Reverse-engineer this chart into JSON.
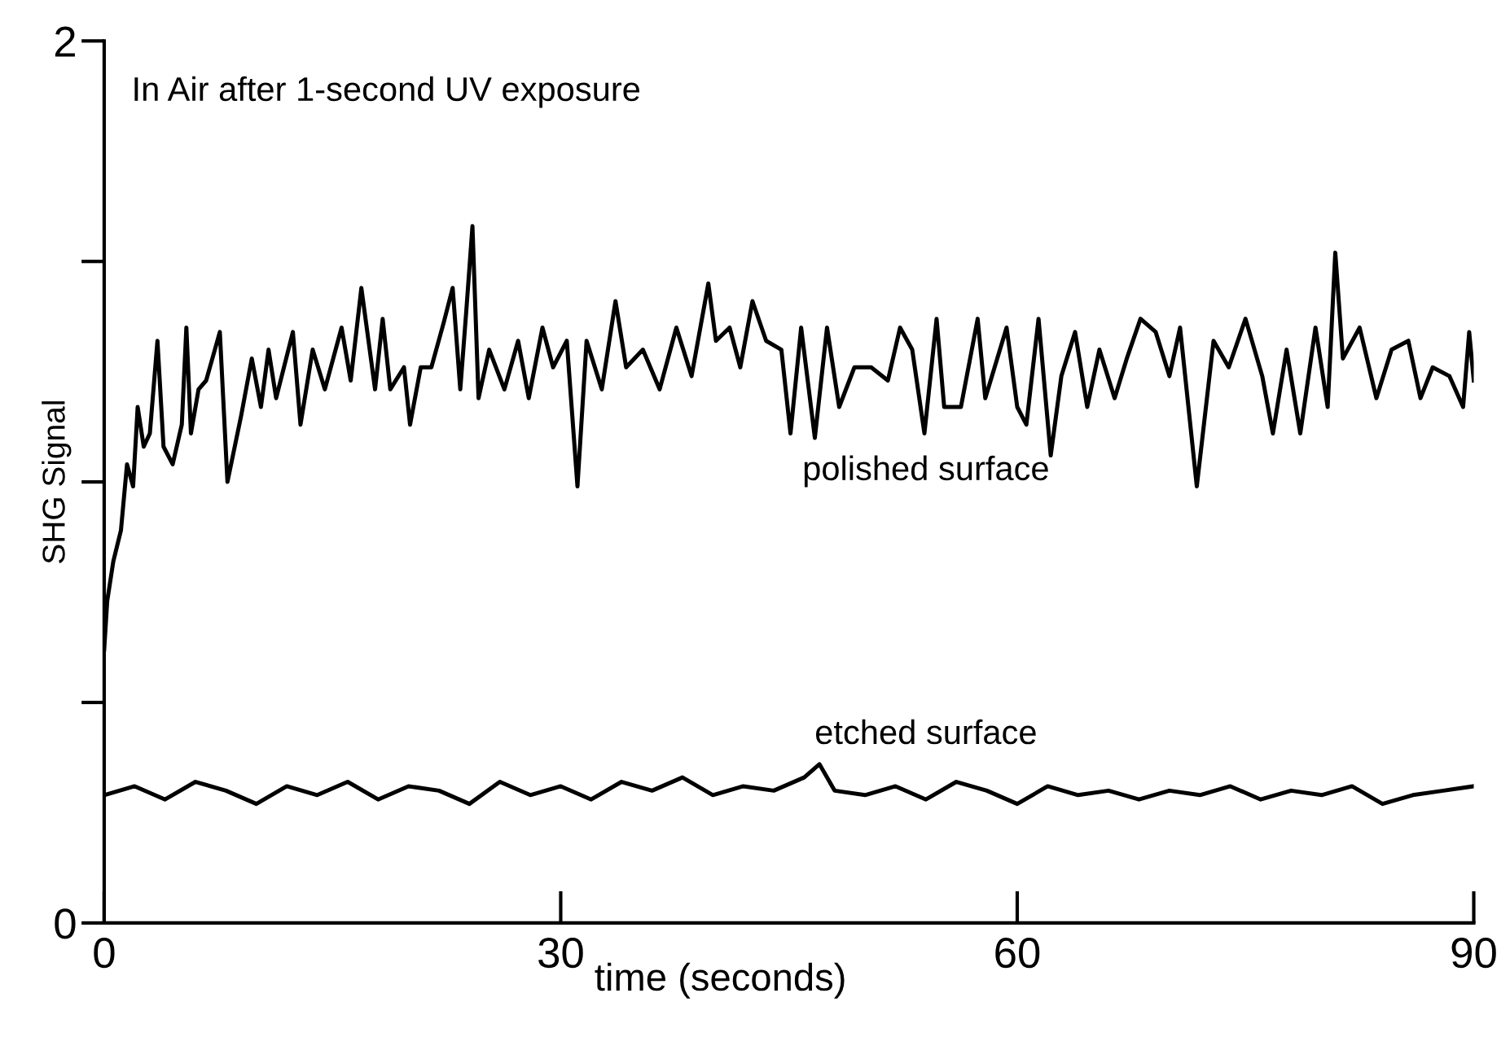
{
  "chart_data": {
    "type": "line",
    "xlabel": "time (seconds)",
    "ylabel": "SHG Signal",
    "annotations": [
      "In Air after 1-second UV exposure"
    ],
    "xlim": [
      0,
      90
    ],
    "xticks": [
      0,
      30,
      60,
      90
    ],
    "ylim": [
      0,
      2
    ],
    "yticks": [
      0,
      {
        "value": 0.5,
        "label": null
      },
      {
        "value": 1,
        "label": null
      },
      {
        "value": 1.5,
        "label": null
      },
      2
    ],
    "grid": false,
    "legend": false,
    "marker": "none",
    "line_style": "solid",
    "series": [
      {
        "name": "polished surface",
        "color": "#000000",
        "x": [
          0,
          0.2,
          0.6,
          1.1,
          1.5,
          1.9,
          2.2,
          2.6,
          3.0,
          3.5,
          3.9,
          4.5,
          5.1,
          5.4,
          5.7,
          6.2,
          6.7,
          7.6,
          8.1,
          9.0,
          9.7,
          10.3,
          10.8,
          11.3,
          12.4,
          12.9,
          13.7,
          14.5,
          15.6,
          16.2,
          16.9,
          17.8,
          18.3,
          18.8,
          19.7,
          20.1,
          20.8,
          21.5,
          22.3,
          22.9,
          23.4,
          23.8,
          24.2,
          24.6,
          25.3,
          26.3,
          27.2,
          27.9,
          28.8,
          29.5,
          30.4,
          31.1,
          31.7,
          32.7,
          33.6,
          34.3,
          35.4,
          36.5,
          37.6,
          38.6,
          39.7,
          40.2,
          41.1,
          41.8,
          42.6,
          43.5,
          44.5,
          45.1,
          45.8,
          46.7,
          47.5,
          48.3,
          49.3,
          50.4,
          51.5,
          52.3,
          53.1,
          53.9,
          54.7,
          55.2,
          56.3,
          57.4,
          57.9,
          59.3,
          60.0,
          60.6,
          61.4,
          62.2,
          62.9,
          63.8,
          64.6,
          65.4,
          66.4,
          67.2,
          68.1,
          69.1,
          70.0,
          70.7,
          71.8,
          72.9,
          73.9,
          75.0,
          76.1,
          76.8,
          77.7,
          78.6,
          79.6,
          80.4,
          80.9,
          81.4,
          82.5,
          83.6,
          84.6,
          85.7,
          86.5,
          87.3,
          88.4,
          89.3,
          89.7,
          90.0
        ],
        "values": [
          0.62,
          0.73,
          0.82,
          0.89,
          1.04,
          0.99,
          1.17,
          1.08,
          1.11,
          1.32,
          1.08,
          1.04,
          1.13,
          1.35,
          1.11,
          1.21,
          1.23,
          1.34,
          1.0,
          1.15,
          1.28,
          1.17,
          1.3,
          1.19,
          1.34,
          1.13,
          1.3,
          1.21,
          1.35,
          1.23,
          1.44,
          1.21,
          1.37,
          1.21,
          1.26,
          1.13,
          1.26,
          1.26,
          1.36,
          1.44,
          1.21,
          1.39,
          1.58,
          1.19,
          1.3,
          1.21,
          1.32,
          1.19,
          1.35,
          1.26,
          1.32,
          0.99,
          1.32,
          1.21,
          1.41,
          1.26,
          1.3,
          1.21,
          1.35,
          1.24,
          1.45,
          1.32,
          1.35,
          1.26,
          1.41,
          1.32,
          1.3,
          1.11,
          1.35,
          1.1,
          1.35,
          1.17,
          1.26,
          1.26,
          1.23,
          1.35,
          1.3,
          1.11,
          1.37,
          1.17,
          1.17,
          1.37,
          1.19,
          1.35,
          1.17,
          1.13,
          1.37,
          1.06,
          1.24,
          1.34,
          1.17,
          1.3,
          1.19,
          1.28,
          1.37,
          1.34,
          1.24,
          1.35,
          0.99,
          1.32,
          1.26,
          1.37,
          1.24,
          1.11,
          1.3,
          1.11,
          1.35,
          1.17,
          1.52,
          1.28,
          1.35,
          1.19,
          1.3,
          1.32,
          1.19,
          1.26,
          1.24,
          1.17,
          1.34,
          1.23
        ]
      },
      {
        "name": "etched surface",
        "color": "#000000",
        "x": [
          0,
          2,
          4,
          6,
          8,
          10,
          12,
          14,
          16,
          18,
          20,
          22,
          24,
          26,
          28,
          30,
          32,
          34,
          36,
          38,
          40,
          42,
          44,
          46,
          47,
          48,
          50,
          52,
          54,
          56,
          58,
          60,
          62,
          64,
          66,
          68,
          70,
          72,
          74,
          76,
          78,
          80,
          82,
          84,
          86,
          88,
          90
        ],
        "values": [
          0.29,
          0.31,
          0.28,
          0.32,
          0.3,
          0.27,
          0.31,
          0.29,
          0.32,
          0.28,
          0.31,
          0.3,
          0.27,
          0.32,
          0.29,
          0.31,
          0.28,
          0.32,
          0.3,
          0.33,
          0.29,
          0.31,
          0.3,
          0.33,
          0.36,
          0.3,
          0.29,
          0.31,
          0.28,
          0.32,
          0.3,
          0.27,
          0.31,
          0.29,
          0.3,
          0.28,
          0.3,
          0.29,
          0.31,
          0.28,
          0.3,
          0.29,
          0.31,
          0.27,
          0.29,
          0.3,
          0.31
        ]
      }
    ]
  }
}
